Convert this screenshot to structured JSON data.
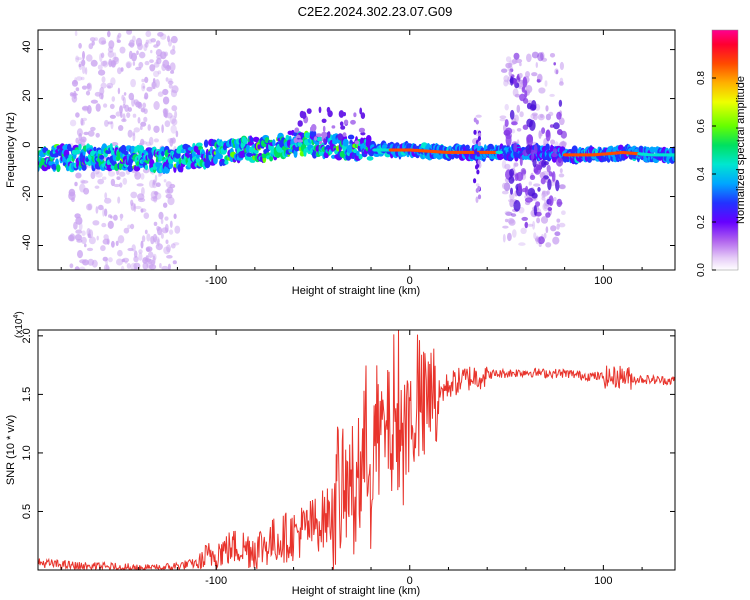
{
  "page_title": "C2E2.2024.302.23.07.G09",
  "chart_data": [
    {
      "type": "heatmap",
      "xlabel": "Height of straight line (km)",
      "ylabel": "Frequency (Hz)",
      "xlim": [
        -192,
        137
      ],
      "ylim": [
        -50,
        48
      ],
      "xticks": [
        -100,
        0,
        100
      ],
      "yticks": [
        -40,
        -20,
        0,
        20,
        40
      ],
      "colorbar": {
        "label": "Normalized spectral amplitude",
        "range": [
          0,
          1
        ],
        "ticks": [
          0.0,
          0.2,
          0.4,
          0.6,
          0.8
        ],
        "tick_labels": [
          "0.0",
          "0.2",
          "0.4",
          "0.6",
          "0.8"
        ],
        "colormap": [
          "#ffffff",
          "#d9b8f5",
          "#8a2be2",
          "#3b1fff",
          "#00a0ff",
          "#00e0e0",
          "#00e060",
          "#80ff00",
          "#ffff00",
          "#ffa000",
          "#ff2a00",
          "#ff0060"
        ]
      },
      "ridge": [
        {
          "x": -190,
          "y": -4
        },
        {
          "x": -170,
          "y": -4
        },
        {
          "x": -150,
          "y": -4
        },
        {
          "x": -130,
          "y": -5
        },
        {
          "x": -115,
          "y": -4
        },
        {
          "x": -100,
          "y": -2
        },
        {
          "x": -85,
          "y": -1
        },
        {
          "x": -70,
          "y": 0
        },
        {
          "x": -60,
          "y": 2
        },
        {
          "x": -45,
          "y": 1
        },
        {
          "x": -30,
          "y": 0
        },
        {
          "x": -20,
          "y": -1
        },
        {
          "x": 0,
          "y": -1
        },
        {
          "x": 20,
          "y": -2
        },
        {
          "x": 40,
          "y": -2
        },
        {
          "x": 55,
          "y": -2
        },
        {
          "x": 70,
          "y": -2
        },
        {
          "x": 80,
          "y": -3
        },
        {
          "x": 95,
          "y": -3
        },
        {
          "x": 110,
          "y": -2
        },
        {
          "x": 125,
          "y": -3
        },
        {
          "x": 137,
          "y": -3
        }
      ],
      "scatter_regions": [
        {
          "x_range": [
            -175,
            -120
          ],
          "y_range": [
            -50,
            48
          ],
          "level": 0.15
        },
        {
          "x_range": [
            48,
            80
          ],
          "y_range": [
            -40,
            38
          ],
          "level": 0.2
        },
        {
          "x_range": [
            33,
            36
          ],
          "y_range": [
            -28,
            15
          ],
          "level": 0.15
        }
      ]
    },
    {
      "type": "line",
      "xlabel": "Height of straight line (km)",
      "ylabel": "SNR (10 * v/v)",
      "multiplier_label": "(x10",
      "multiplier_exp": "4",
      "xlim": [
        -192,
        137
      ],
      "ylim": [
        0.0,
        2.05
      ],
      "xticks": [
        -100,
        0,
        100
      ],
      "yticks": [
        0.5,
        1.0,
        1.5,
        2.0
      ],
      "ytick_labels": [
        "0.5",
        "1.0",
        "1.5",
        "2.0"
      ],
      "series": [
        {
          "color": "#e8342c",
          "x": [
            -190,
            -170,
            -150,
            -130,
            -110,
            -100,
            -90,
            -80,
            -70,
            -60,
            -50,
            -40,
            -35,
            -30,
            -25,
            -20,
            -15,
            -10,
            -5,
            0,
            5,
            10,
            15,
            20,
            30,
            40,
            50,
            60,
            70,
            80,
            90,
            100,
            105,
            110,
            115,
            120,
            130,
            137
          ],
          "y": [
            0.06,
            0.03,
            0.02,
            0.01,
            0.06,
            0.15,
            0.2,
            0.18,
            0.25,
            0.3,
            0.38,
            0.48,
            0.6,
            0.75,
            0.85,
            1.0,
            1.15,
            1.25,
            1.2,
            1.3,
            1.35,
            1.45,
            1.5,
            1.58,
            1.64,
            1.67,
            1.68,
            1.69,
            1.68,
            1.68,
            1.66,
            1.65,
            1.64,
            1.66,
            1.63,
            1.63,
            1.62,
            1.62
          ]
        }
      ]
    }
  ]
}
